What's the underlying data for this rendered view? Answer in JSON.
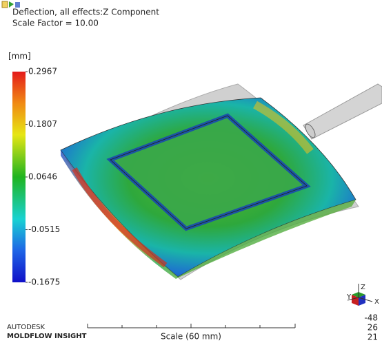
{
  "header": {
    "title": "Deflection, all effects:Z Component",
    "subtitle": "Scale Factor = 10.00"
  },
  "legend": {
    "unit": "[mm]",
    "ticks": [
      0.2967,
      0.1807,
      0.0646,
      -0.0515,
      -0.1675
    ]
  },
  "footer": {
    "brand": "AUTODESK",
    "product": "MOLDFLOW INSIGHT",
    "scale": "Scale (60 mm)"
  },
  "triad": {
    "axes": [
      "Z",
      "Y",
      "X"
    ],
    "angles": [
      -48,
      26,
      21
    ]
  }
}
